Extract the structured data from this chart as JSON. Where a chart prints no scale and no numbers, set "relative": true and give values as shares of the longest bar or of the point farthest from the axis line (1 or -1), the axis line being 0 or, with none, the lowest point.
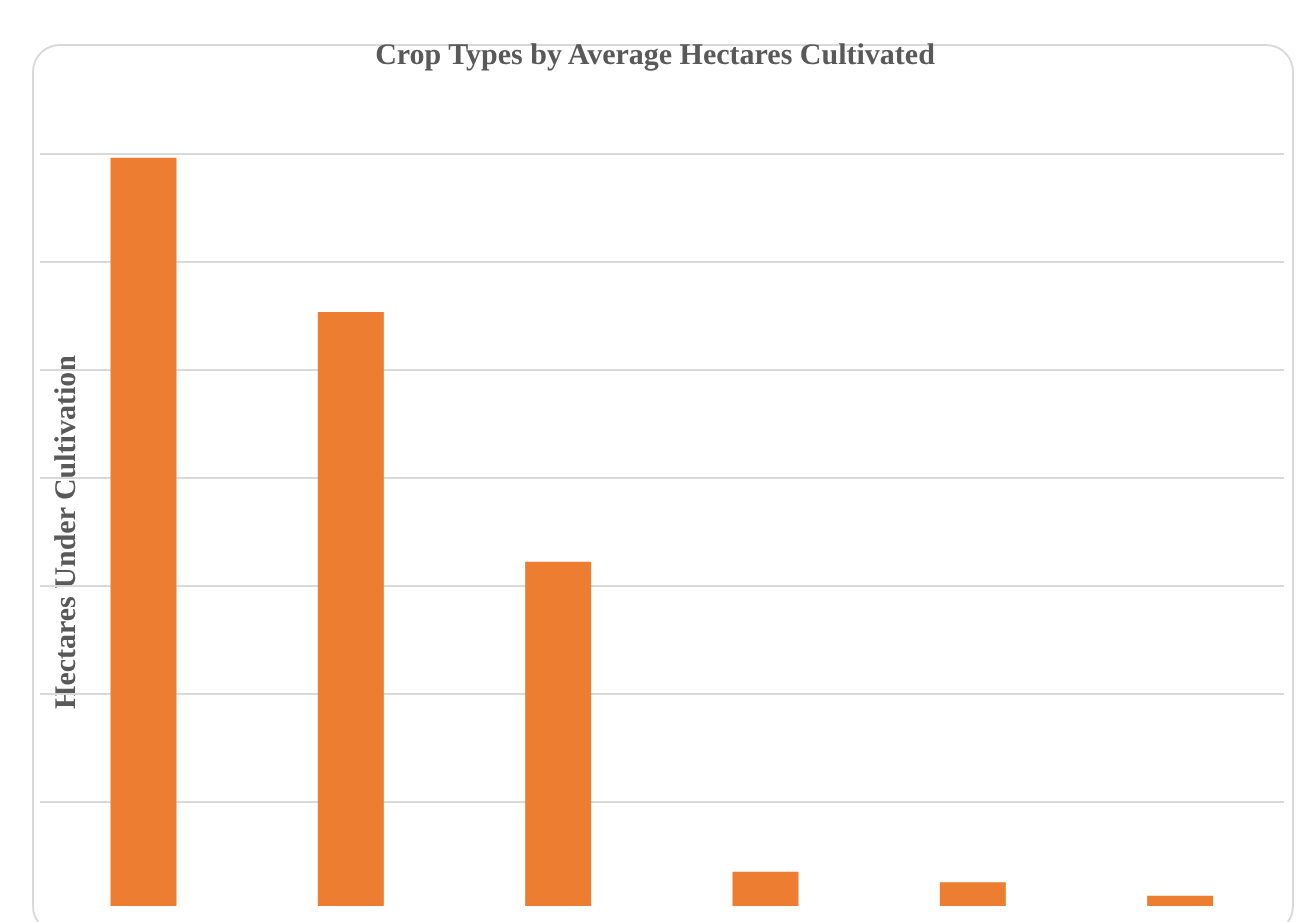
{
  "chart_data": {
    "type": "bar",
    "title": "Crop Types by Average Hectares Cultivated",
    "ylabel": "Hectares Under Cultivation",
    "categories": [
      null,
      null,
      null,
      null,
      null,
      null
    ],
    "values": [
      1,
      0.795,
      0.463,
      0.051,
      0.037,
      0.019
    ],
    "color": "#ed7d31",
    "relative": true,
    "grid": true,
    "legend": false
  }
}
